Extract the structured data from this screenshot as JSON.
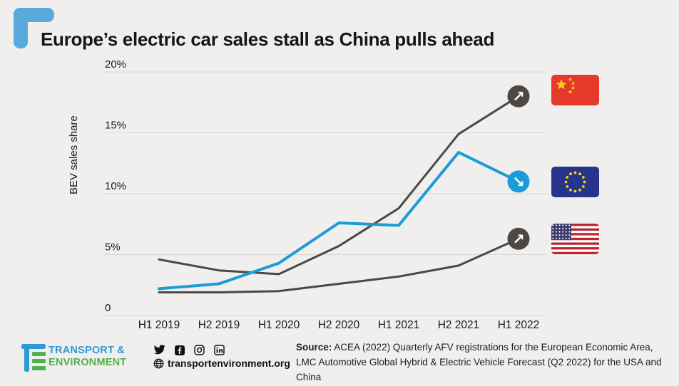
{
  "page": {
    "background": "#f1efee",
    "accent_blue": "#1b9cd8",
    "dark_line_color": "#4b4846",
    "gridline_color": "#d9d6d2"
  },
  "header": {
    "title": "Europe’s electric car sales stall as China pulls ahead"
  },
  "chart_data": {
    "type": "line",
    "title": "Europe’s electric car sales stall as China pulls ahead",
    "xlabel": "",
    "ylabel": "BEV sales share",
    "categories": [
      "H1 2019",
      "H2 2019",
      "H1 2020",
      "H2 2020",
      "H1 2021",
      "H2 2021",
      "H1 2022"
    ],
    "ylim": [
      0,
      20
    ],
    "grid": true,
    "legend_position": "right-flags",
    "yticks": [
      {
        "value": 0,
        "label": "0"
      },
      {
        "value": 5,
        "label": "5%"
      },
      {
        "value": 10,
        "label": "10%"
      },
      {
        "value": 15,
        "label": "15%"
      },
      {
        "value": 20,
        "label": "20%"
      }
    ],
    "series": [
      {
        "id": "china",
        "name": "China",
        "color": "#4b4846",
        "line_width": 3,
        "flag_icon": "china-flag-icon",
        "trend_icon": "arrow-up-right-icon",
        "values": [
          4.6,
          3.7,
          3.4,
          5.7,
          8.8,
          14.9,
          18.0
        ]
      },
      {
        "id": "usa",
        "name": "United States",
        "color": "#4b4846",
        "line_width": 3,
        "flag_icon": "usa-flag-icon",
        "trend_icon": "arrow-up-right-icon",
        "values": [
          1.9,
          1.9,
          2.0,
          2.6,
          3.2,
          4.1,
          6.3
        ]
      },
      {
        "id": "eu",
        "name": "European Union",
        "color": "#1b9cd8",
        "line_width": 4,
        "flag_icon": "eu-flag-icon",
        "trend_icon": "arrow-down-right-icon",
        "values": [
          2.2,
          2.6,
          4.3,
          7.6,
          7.4,
          13.4,
          11.0
        ]
      }
    ]
  },
  "footer": {
    "logo_line1": "TRANSPORT &",
    "logo_line2": "ENVIRONMENT",
    "social_icons": [
      "twitter-icon",
      "facebook-icon",
      "instagram-icon",
      "linkedin-icon"
    ],
    "website": "transportenvironment.org",
    "source_label": "Source:",
    "source_line1": "ACEA (2022) Quarterly AFV registrations for the European Economic Area, LMC",
    "source_line2": "Automotive Global Hybrid & Electric Vehicle Forecast (Q2 2022) for the USA and China"
  }
}
